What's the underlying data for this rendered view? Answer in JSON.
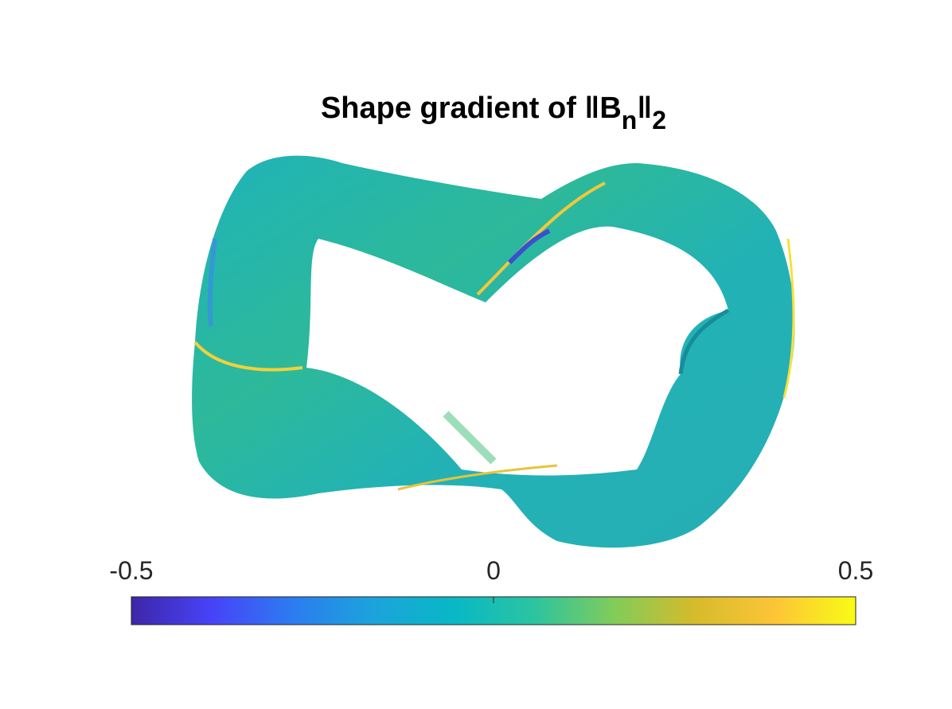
{
  "chart_data": {
    "type": "surface",
    "title": [
      "Shape gradient of ‖B",
      "n",
      "‖",
      "2"
    ],
    "colorbar": {
      "lim": [
        -0.5,
        0.5
      ],
      "ticks": [
        -0.5,
        0,
        0.5
      ],
      "colormap": [
        "#3e26a8",
        "#4743f8",
        "#2c7cf0",
        "#1ca3dc",
        "#08b8c6",
        "#2bc4a0",
        "#81cc59",
        "#d6bb2b",
        "#fcc537",
        "#f9fb15"
      ]
    }
  }
}
